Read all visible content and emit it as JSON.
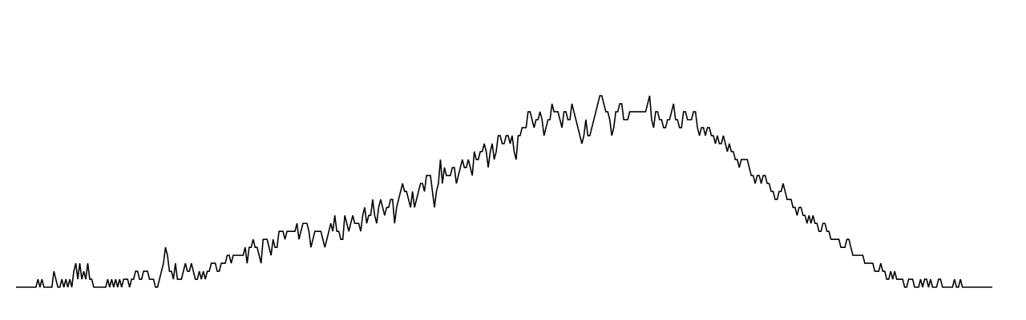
{
  "chart_data": {
    "type": "line",
    "title": "",
    "xlabel": "",
    "ylabel": "",
    "axes_visible": false,
    "grid": false,
    "line_color": "#000000",
    "ylim": [
      0,
      34
    ],
    "values": [
      0,
      0,
      0,
      0,
      0,
      0,
      0,
      0,
      0,
      0,
      0,
      1,
      0,
      1,
      0,
      0,
      0,
      0,
      0,
      2,
      1,
      0,
      0,
      1,
      0,
      1,
      0,
      1,
      0,
      2,
      3,
      1,
      3,
      1,
      2,
      1,
      3,
      1,
      1,
      0,
      0,
      0,
      0,
      0,
      0,
      0,
      1,
      0,
      1,
      0,
      1,
      0,
      1,
      0,
      1,
      1,
      1,
      0,
      1,
      1,
      2,
      2,
      1,
      1,
      2,
      2,
      2,
      1,
      1,
      1,
      0,
      0,
      1,
      2,
      3,
      5,
      4,
      2,
      2,
      1,
      3,
      1,
      1,
      1,
      2,
      3,
      2,
      2,
      3,
      2,
      1,
      1,
      2,
      1,
      2,
      1,
      2,
      2,
      3,
      3,
      3,
      2,
      2,
      3,
      3,
      3,
      4,
      4,
      3,
      4,
      4,
      4,
      4,
      4,
      4,
      5,
      3,
      5,
      5,
      6,
      5,
      5,
      4,
      3,
      6,
      6,
      6,
      5,
      4,
      6,
      5,
      5,
      7,
      7,
      7,
      6,
      7,
      7,
      7,
      7,
      7,
      8,
      6,
      7,
      8,
      8,
      8,
      7,
      5,
      6,
      7,
      7,
      7,
      7,
      6,
      5,
      6,
      7,
      8,
      7,
      9,
      7,
      7,
      6,
      6,
      9,
      8,
      7,
      8,
      9,
      8,
      8,
      8,
      7,
      9,
      10,
      8,
      9,
      9,
      11,
      9,
      8,
      10,
      11,
      10,
      9,
      10,
      10,
      11,
      11,
      8,
      10,
      11,
      12,
      13,
      12,
      12,
      11,
      10,
      12,
      10,
      11,
      12,
      13,
      13,
      12,
      14,
      14,
      14,
      12,
      10,
      12,
      13,
      16,
      13,
      15,
      14,
      14,
      14,
      15,
      15,
      13,
      14,
      15,
      16,
      15,
      15,
      16,
      15,
      14,
      17,
      16,
      16,
      17,
      17,
      18,
      17,
      15,
      17,
      18,
      16,
      17,
      19,
      19,
      18,
      18,
      19,
      19,
      18,
      19,
      17,
      16,
      19,
      19,
      20,
      20,
      20,
      22,
      22,
      21,
      20,
      21,
      21,
      22,
      21,
      19,
      20,
      21,
      21,
      23,
      22,
      22,
      22,
      21,
      20,
      22,
      22,
      21,
      21,
      23,
      22,
      21,
      20,
      19,
      18,
      19,
      21,
      19,
      19,
      20,
      21,
      22,
      23,
      24,
      24,
      23,
      22,
      22,
      21,
      19,
      20,
      22,
      22,
      23,
      23,
      21,
      21,
      21,
      22,
      22,
      22,
      22,
      22,
      22,
      22,
      22,
      22,
      23,
      24,
      21,
      20,
      22,
      22,
      21,
      21,
      20,
      20,
      21,
      21,
      22,
      23,
      21,
      21,
      20,
      20,
      22,
      22,
      21,
      21,
      21,
      22,
      22,
      20,
      19,
      20,
      20,
      19,
      20,
      20,
      19,
      19,
      18,
      19,
      18,
      18,
      19,
      18,
      17,
      18,
      17,
      17,
      16,
      16,
      15,
      16,
      16,
      16,
      16,
      15,
      14,
      14,
      13,
      14,
      14,
      13,
      14,
      14,
      13,
      13,
      12,
      12,
      11,
      11,
      12,
      12,
      13,
      12,
      11,
      11,
      11,
      10,
      10,
      9,
      10,
      10,
      9,
      9,
      8,
      9,
      8,
      9,
      8,
      8,
      7,
      7,
      8,
      8,
      7,
      7,
      6,
      6,
      6,
      6,
      6,
      5,
      5,
      5,
      6,
      6,
      5,
      4,
      4,
      4,
      4,
      4,
      4,
      3,
      3,
      3,
      3,
      3,
      2,
      2,
      2,
      3,
      2,
      2,
      1,
      1,
      2,
      1,
      2,
      1,
      1,
      1,
      1,
      0,
      0,
      1,
      1,
      1,
      0,
      0,
      0,
      1,
      0,
      1,
      1,
      0,
      1,
      0,
      0,
      0,
      1,
      1,
      0,
      0,
      0,
      0,
      0,
      0,
      1,
      0,
      0,
      1,
      0,
      0,
      0,
      0,
      0,
      0,
      0,
      0,
      0,
      0,
      0,
      0,
      0,
      0,
      0,
      0
    ]
  }
}
